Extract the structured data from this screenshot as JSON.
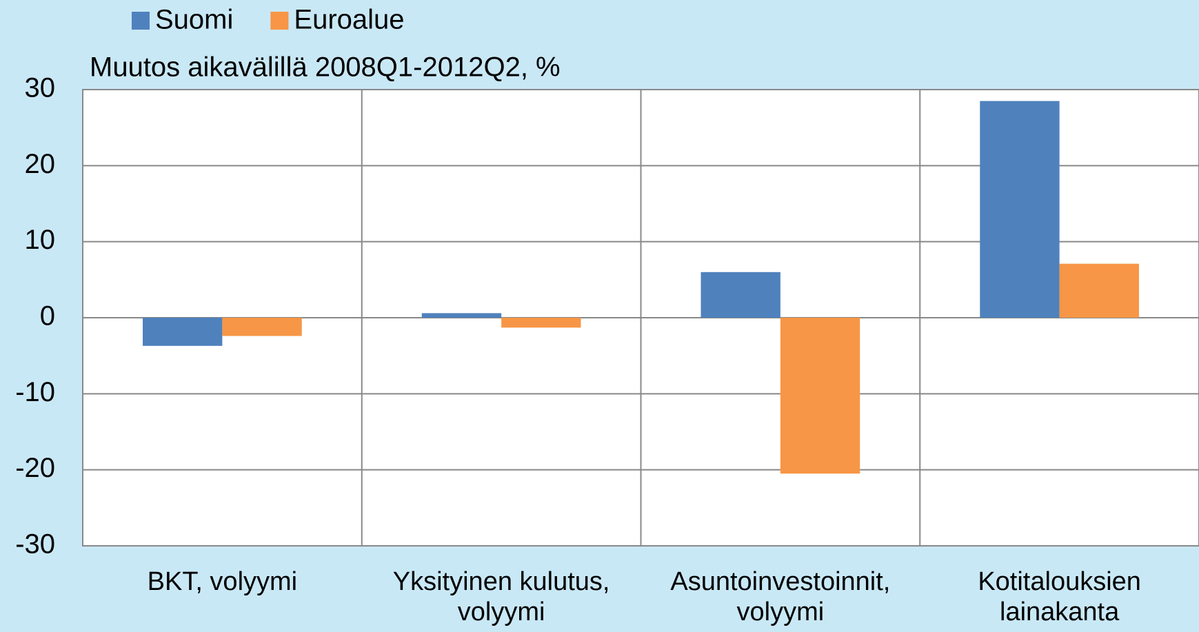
{
  "chart_data": {
    "type": "bar",
    "subtitle": "Muutos aikavälillä  2008Q1-2012Q2,  %",
    "categories": [
      "BKT, volyymi",
      "Yksityinen kulutus, volyymi",
      "Asuntoinvestoinnit, volyymi",
      "Kotitalouksien lainakanta"
    ],
    "series": [
      {
        "name": "Suomi",
        "color": "#4f81bd",
        "values": [
          -3.7,
          0.6,
          6.0,
          28.5
        ]
      },
      {
        "name": "Euroalue",
        "color": "#f79646",
        "values": [
          -2.4,
          -1.3,
          -20.5,
          7.1
        ]
      }
    ],
    "ylim": [
      -30,
      30
    ],
    "yticks": [
      -30,
      -20,
      -10,
      0,
      10,
      20,
      30
    ],
    "grid": true
  }
}
